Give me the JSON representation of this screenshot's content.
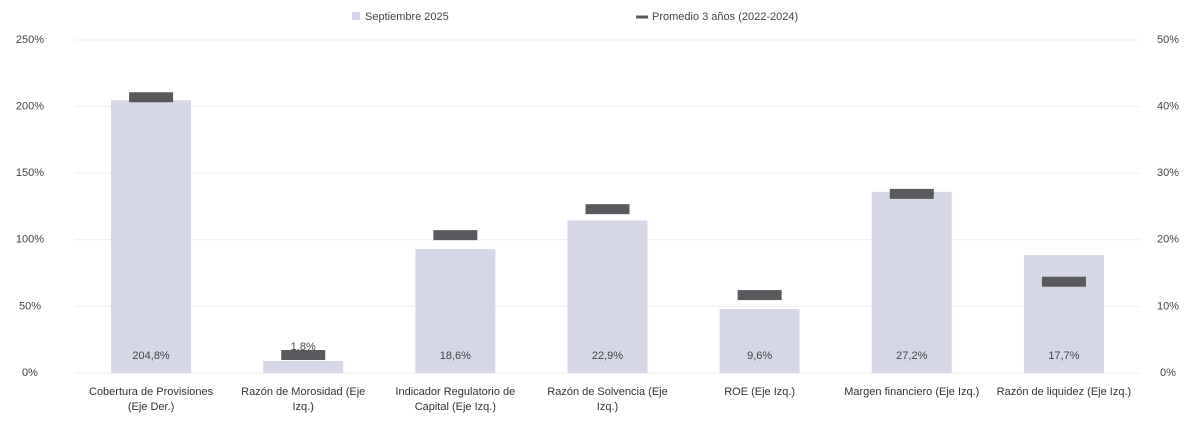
{
  "chart_data": {
    "type": "bar",
    "categories": [
      "Cobertura de Provisiones (Eje Der.)",
      "Razón de Morosidad (Eje Izq.)",
      "Indicador Regulatorio de Capital (Eje Izq.)",
      "Razón de Solvencia (Eje Izq.)",
      "ROE (Eje Izq.)",
      "Margen financiero (Eje Izq.)",
      "Razón de liquidez (Eje Izq.)"
    ],
    "series": [
      {
        "name": "Septiembre 2025",
        "color": "#d5d7e7",
        "axes": [
          "y",
          "y2",
          "y2",
          "y2",
          "y2",
          "y2",
          "y2"
        ],
        "values": [
          204.8,
          1.8,
          18.6,
          22.9,
          9.6,
          27.2,
          17.7
        ],
        "value_labels": [
          "204,8%",
          "1,8%",
          "18,6%",
          "22,9%",
          "9,6%",
          "27,2%",
          "17,7%"
        ]
      },
      {
        "name": "Promedio 3 años (2022-2024)",
        "color": "#5a5a5e",
        "axes": [
          "y",
          "y2",
          "y2",
          "y2",
          "y2",
          "y2",
          "y2"
        ],
        "values": [
          207,
          2.7,
          20.7,
          24.6,
          11.7,
          26.9,
          13.7
        ]
      }
    ],
    "ylim": [
      0,
      250
    ],
    "yticks": [
      {
        "value": 0,
        "label": "0%"
      },
      {
        "value": 50,
        "label": "50%"
      },
      {
        "value": 100,
        "label": "100%"
      },
      {
        "value": 150,
        "label": "150%"
      },
      {
        "value": 200,
        "label": "200%"
      },
      {
        "value": 250,
        "label": "250%"
      }
    ],
    "y2lim": [
      0,
      50
    ],
    "y2ticks": [
      {
        "value": 0,
        "label": "0%"
      },
      {
        "value": 10,
        "label": "10%"
      },
      {
        "value": 20,
        "label": "20%"
      },
      {
        "value": 30,
        "label": "30%"
      },
      {
        "value": 40,
        "label": "40%"
      },
      {
        "value": 50,
        "label": "50%"
      }
    ],
    "grid": true
  }
}
